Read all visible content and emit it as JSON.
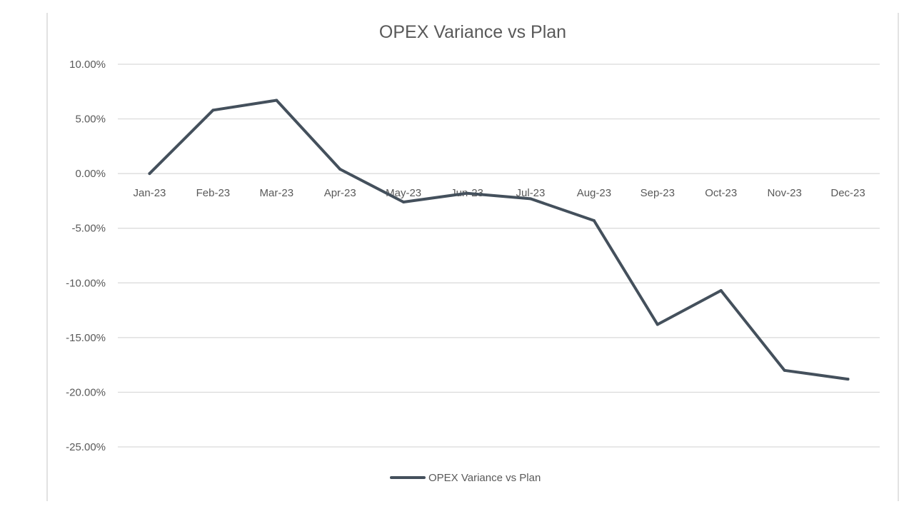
{
  "chart_data": {
    "type": "line",
    "title": "OPEX Variance vs Plan",
    "xlabel": "",
    "ylabel": "",
    "ylim": [
      -25,
      10
    ],
    "ytick_step": 5,
    "ytick_labels": [
      "10.00%",
      "5.00%",
      "0.00%",
      "-5.00%",
      "-10.00%",
      "-15.00%",
      "-20.00%",
      "-25.00%"
    ],
    "grid": true,
    "legend_position": "bottom",
    "categories": [
      "Jan-23",
      "Feb-23",
      "Mar-23",
      "Apr-23",
      "May-23",
      "Jun-23",
      "Jul-23",
      "Aug-23",
      "Sep-23",
      "Oct-23",
      "Nov-23",
      "Dec-23"
    ],
    "series": [
      {
        "name": "OPEX Variance vs Plan",
        "color": "#44505c",
        "values": [
          0.0,
          5.8,
          6.7,
          0.4,
          -2.6,
          -1.8,
          -2.3,
          -4.3,
          -13.8,
          -10.7,
          -18.0,
          -18.8
        ]
      }
    ]
  }
}
